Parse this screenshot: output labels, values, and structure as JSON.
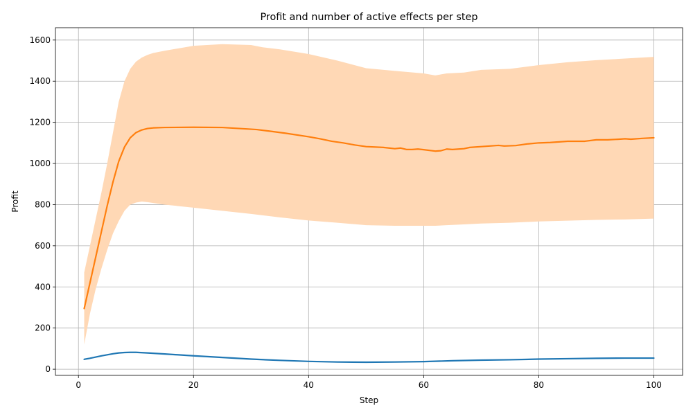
{
  "chart_data": {
    "type": "line",
    "title": "Profit and number of active effects per step",
    "xlabel": "Step",
    "ylabel": "Profit",
    "xlim": [
      -4,
      105
    ],
    "ylim": [
      -30,
      1660
    ],
    "xticks": [
      0,
      20,
      40,
      60,
      80,
      100
    ],
    "yticks": [
      0,
      200,
      400,
      600,
      800,
      1000,
      1200,
      1400,
      1600
    ],
    "grid": true,
    "colors": {
      "orange_line": "#ff7f0e",
      "band": "#ffd8b5",
      "blue_line": "#1f77b4",
      "grid": "#b0b0b0"
    },
    "series": [
      {
        "kind": "line",
        "color": "#1f77b4",
        "x": [
          1,
          2,
          3,
          4,
          5,
          6,
          7,
          8,
          9,
          10,
          12,
          15,
          20,
          25,
          30,
          35,
          40,
          45,
          50,
          55,
          60,
          65,
          70,
          75,
          80,
          85,
          90,
          95,
          100
        ],
        "y": [
          48,
          53,
          59,
          65,
          70,
          75,
          79,
          81,
          82,
          82,
          79,
          74,
          65,
          57,
          49,
          43,
          38,
          35,
          34,
          35,
          37,
          41,
          44,
          46,
          49,
          51,
          53,
          54,
          54
        ]
      },
      {
        "kind": "line",
        "color": "#ff7f0e",
        "x": [
          1,
          2,
          3,
          4,
          5,
          6,
          7,
          8,
          9,
          10,
          11,
          12,
          13,
          15,
          20,
          25,
          28,
          31,
          33,
          36,
          40,
          42,
          44,
          46,
          48,
          50,
          53,
          55,
          56,
          57,
          58,
          59,
          60,
          62,
          63,
          64,
          65,
          67,
          68,
          70,
          73,
          74,
          76,
          78,
          80,
          82,
          85,
          88,
          90,
          92,
          94,
          95,
          96,
          98,
          100
        ],
        "y": [
          295,
          420,
          545,
          670,
          795,
          910,
          1010,
          1080,
          1125,
          1150,
          1163,
          1170,
          1173,
          1175,
          1176,
          1175,
          1170,
          1165,
          1158,
          1147,
          1130,
          1120,
          1108,
          1100,
          1090,
          1082,
          1078,
          1072,
          1075,
          1068,
          1068,
          1070,
          1067,
          1060,
          1062,
          1070,
          1068,
          1072,
          1078,
          1082,
          1088,
          1085,
          1087,
          1095,
          1100,
          1102,
          1108,
          1108,
          1115,
          1115,
          1118,
          1120,
          1118,
          1122,
          1125
        ]
      },
      {
        "kind": "band",
        "color": "#ffd8b5",
        "x": [
          1,
          2,
          3,
          4,
          5,
          6,
          7,
          8,
          9,
          10,
          11,
          12,
          13,
          15,
          20,
          25,
          30,
          32,
          35,
          40,
          45,
          50,
          55,
          60,
          62,
          64,
          67,
          70,
          75,
          80,
          85,
          90,
          95,
          100
        ],
        "upper": [
          470,
          600,
          730,
          860,
          1000,
          1150,
          1300,
          1400,
          1460,
          1495,
          1515,
          1528,
          1537,
          1548,
          1572,
          1580,
          1576,
          1565,
          1555,
          1532,
          1500,
          1463,
          1450,
          1438,
          1428,
          1438,
          1442,
          1455,
          1460,
          1478,
          1492,
          1502,
          1510,
          1518
        ],
        "lower": [
          120,
          270,
          390,
          490,
          580,
          660,
          720,
          770,
          800,
          810,
          815,
          812,
          808,
          800,
          785,
          770,
          755,
          748,
          738,
          723,
          712,
          700,
          697,
          697,
          697,
          700,
          704,
          708,
          712,
          718,
          722,
          726,
          728,
          732
        ]
      }
    ]
  }
}
